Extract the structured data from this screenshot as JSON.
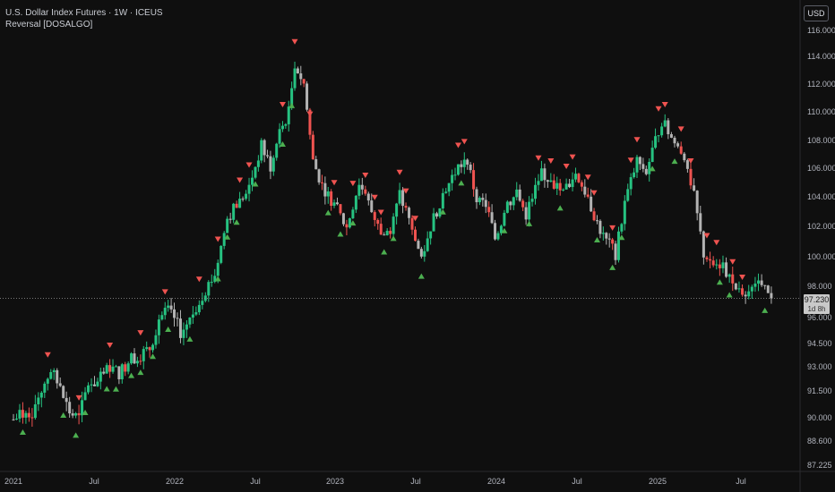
{
  "legend": {
    "symbol_title": "U.S. Dollar Index Futures · 1W · ICEUS",
    "indicator": "Reversal [DOSALGO]"
  },
  "currency_button": "USD",
  "last_price": {
    "value": "97.230",
    "countdown": "1d 8h"
  },
  "colors": {
    "background": "#0f0f0f",
    "up_candle": "#26c281",
    "down_candle": "#b3b3b3",
    "reversal_down_candle": "#ef5350",
    "buy_marker": "#4caf50",
    "sell_marker": "#ef5350",
    "axis_text": "#b2b5be",
    "price_line": "#9e9e9e"
  },
  "chart_data": {
    "type": "candlestick",
    "y_ticks": [
      "116.000",
      "114.000",
      "112.000",
      "110.000",
      "108.000",
      "106.000",
      "104.000",
      "102.000",
      "100.000",
      "98.000",
      "96.000",
      "94.500",
      "93.000",
      "91.500",
      "90.000",
      "88.600",
      "87.225"
    ],
    "x_ticks": [
      "2021",
      "Jul",
      "2022",
      "Jul",
      "2023",
      "Jul",
      "2024",
      "Jul",
      "2025",
      "Jul"
    ],
    "ylim": [
      87.225,
      116.0
    ],
    "close_path": [
      [
        "2021-01-01",
        89.9
      ],
      [
        "2021-01-22",
        90.2
      ],
      [
        "2021-02-12",
        90.4
      ],
      [
        "2021-03-05",
        91.6
      ],
      [
        "2021-03-26",
        92.8
      ],
      [
        "2021-04-09",
        92.0
      ],
      [
        "2021-05-07",
        90.3
      ],
      [
        "2021-05-28",
        89.9
      ],
      [
        "2021-06-18",
        92.0
      ],
      [
        "2021-07-09",
        92.0
      ],
      [
        "2021-08-06",
        93.0
      ],
      [
        "2021-08-27",
        92.6
      ],
      [
        "2021-09-24",
        93.6
      ],
      [
        "2021-10-15",
        93.8
      ],
      [
        "2021-11-05",
        94.2
      ],
      [
        "2021-11-26",
        96.0
      ],
      [
        "2021-12-17",
        96.4
      ],
      [
        "2022-01-14",
        95.2
      ],
      [
        "2022-02-04",
        95.8
      ],
      [
        "2022-03-04",
        97.5
      ],
      [
        "2022-04-01",
        98.8
      ],
      [
        "2022-04-29",
        102.5
      ],
      [
        "2022-05-20",
        103.5
      ],
      [
        "2022-06-10",
        104.0
      ],
      [
        "2022-07-15",
        107.6
      ],
      [
        "2022-08-05",
        106.1
      ],
      [
        "2022-08-26",
        108.5
      ],
      [
        "2022-09-16",
        110.0
      ],
      [
        "2022-09-30",
        113.5
      ],
      [
        "2022-10-21",
        112.0
      ],
      [
        "2022-11-11",
        106.5
      ],
      [
        "2022-12-02",
        104.8
      ],
      [
        "2022-12-30",
        103.5
      ],
      [
        "2023-01-27",
        101.9
      ],
      [
        "2023-02-24",
        105.0
      ],
      [
        "2023-03-24",
        103.0
      ],
      [
        "2023-04-14",
        101.5
      ],
      [
        "2023-05-05",
        101.5
      ],
      [
        "2023-05-26",
        104.2
      ],
      [
        "2023-06-16",
        102.3
      ],
      [
        "2023-07-14",
        99.9
      ],
      [
        "2023-08-04",
        102.0
      ],
      [
        "2023-09-01",
        104.2
      ],
      [
        "2023-10-06",
        106.1
      ],
      [
        "2023-10-27",
        106.5
      ],
      [
        "2023-11-17",
        103.8
      ],
      [
        "2023-12-08",
        103.5
      ],
      [
        "2023-12-29",
        101.2
      ],
      [
        "2024-01-26",
        103.5
      ],
      [
        "2024-02-16",
        104.2
      ],
      [
        "2024-03-08",
        102.8
      ],
      [
        "2024-04-12",
        105.8
      ],
      [
        "2024-05-03",
        105.0
      ],
      [
        "2024-05-31",
        104.3
      ],
      [
        "2024-06-28",
        105.6
      ],
      [
        "2024-07-19",
        104.4
      ],
      [
        "2024-08-09",
        102.8
      ],
      [
        "2024-08-30",
        101.3
      ],
      [
        "2024-09-27",
        100.2
      ],
      [
        "2024-10-18",
        103.6
      ],
      [
        "2024-11-15",
        106.5
      ],
      [
        "2024-12-06",
        105.8
      ],
      [
        "2024-12-27",
        108.0
      ],
      [
        "2025-01-10",
        109.4
      ],
      [
        "2025-02-07",
        107.8
      ],
      [
        "2025-02-28",
        107.0
      ],
      [
        "2025-03-21",
        104.0
      ],
      [
        "2025-04-11",
        100.2
      ],
      [
        "2025-05-02",
        99.5
      ],
      [
        "2025-05-23",
        99.5
      ],
      [
        "2025-06-13",
        98.2
      ],
      [
        "2025-07-04",
        97.2
      ],
      [
        "2025-07-25",
        98.4
      ],
      [
        "2025-08-15",
        97.8
      ],
      [
        "2025-09-05",
        97.23
      ]
    ],
    "last_price_value": 97.23,
    "buy_signals": [
      "2021-01-22",
      "2021-04-23",
      "2021-05-21",
      "2021-06-11",
      "2021-07-30",
      "2021-08-20",
      "2021-09-24",
      "2021-10-15",
      "2021-11-12",
      "2021-12-17",
      "2022-02-04",
      "2022-04-08",
      "2022-04-29",
      "2022-05-20",
      "2022-07-01",
      "2022-09-02",
      "2022-09-23",
      "2022-12-16",
      "2023-01-13",
      "2023-02-10",
      "2023-04-21",
      "2023-05-12",
      "2023-07-14",
      "2023-09-01",
      "2023-10-13",
      "2024-01-19",
      "2024-03-15",
      "2024-05-24",
      "2024-08-16",
      "2024-09-20",
      "2024-10-11",
      "2024-12-20",
      "2025-02-07",
      "2025-05-16",
      "2025-06-06",
      "2025-08-22"
    ],
    "sell_signals": [
      "2021-03-19",
      "2021-05-28",
      "2021-08-06",
      "2021-10-15",
      "2021-12-10",
      "2022-02-25",
      "2022-04-08",
      "2022-05-27",
      "2022-06-17",
      "2022-09-02",
      "2022-09-30",
      "2022-11-04",
      "2022-12-30",
      "2023-02-10",
      "2023-03-10",
      "2023-03-31",
      "2023-04-14",
      "2023-05-26",
      "2023-06-09",
      "2023-06-30",
      "2023-10-06",
      "2023-10-20",
      "2024-04-05",
      "2024-05-03",
      "2024-06-07",
      "2024-06-21",
      "2024-07-26",
      "2024-08-09",
      "2024-09-20",
      "2024-11-01",
      "2024-11-15",
      "2025-01-03",
      "2025-01-17",
      "2025-02-21",
      "2025-03-14",
      "2025-04-18",
      "2025-05-09",
      "2025-06-13",
      "2025-07-04"
    ]
  }
}
